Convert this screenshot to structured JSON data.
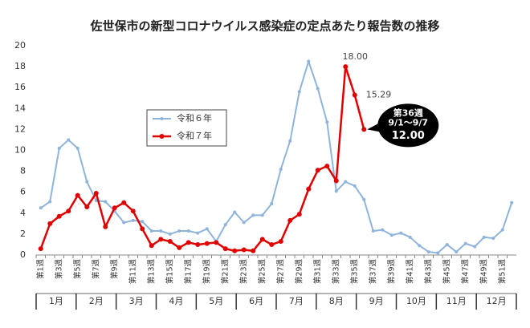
{
  "chart_data": {
    "type": "line",
    "title": "佐世保市の新型コロナウイルス感染症の定点あたり報告数の推移",
    "categories": [
      "第1週",
      null,
      "第3週",
      null,
      "第5週",
      null,
      "第7週",
      null,
      "第9週",
      null,
      "第11週",
      null,
      "第13週",
      null,
      "第15週",
      null,
      "第17週",
      null,
      "第19週",
      null,
      "第21週",
      null,
      "第23週",
      null,
      "第25週",
      null,
      "第27週",
      null,
      "第29週",
      null,
      "第31週",
      null,
      "第33週",
      null,
      "第35週",
      null,
      "第37週",
      null,
      "第39週",
      null,
      "第41週",
      null,
      "第43週",
      null,
      "第45週",
      null,
      "第47週",
      null,
      "第49週",
      null,
      "第51週",
      null
    ],
    "months": [
      "1月",
      "2月",
      "3月",
      "4月",
      "5月",
      "6月",
      "7月",
      "8月",
      "9月",
      "10月",
      "11月",
      "12月"
    ],
    "series": [
      {
        "name": "令和６年",
        "color": "#8fb4dc",
        "values": [
          4.5,
          5.1,
          10.2,
          11.0,
          10.2,
          7.0,
          5.2,
          5.1,
          4.2,
          3.1,
          3.3,
          3.2,
          2.3,
          2.3,
          2.0,
          2.3,
          2.3,
          2.1,
          2.5,
          1.3,
          2.9,
          4.1,
          3.1,
          3.8,
          3.8,
          4.9,
          8.2,
          10.9,
          15.6,
          18.5,
          15.9,
          12.7,
          6.1,
          7.0,
          6.6,
          5.3,
          2.3,
          2.4,
          1.9,
          2.1,
          1.7,
          0.9,
          0.3,
          0.2,
          1.0,
          0.3,
          1.1,
          0.8,
          1.7,
          1.6,
          2.4,
          5.0
        ]
      },
      {
        "name": "令和７年",
        "color": "#e00000",
        "values": [
          0.6,
          3.0,
          3.7,
          4.2,
          5.7,
          4.6,
          5.9,
          2.7,
          4.5,
          5.0,
          4.2,
          2.5,
          0.9,
          1.5,
          1.3,
          0.7,
          1.2,
          1.0,
          1.1,
          1.2,
          0.6,
          0.4,
          0.5,
          0.4,
          1.5,
          1.0,
          1.3,
          3.3,
          3.9,
          6.3,
          8.1,
          8.5,
          7.1,
          18.0,
          15.29,
          12.0,
          null,
          null,
          null,
          null,
          null,
          null,
          null,
          null,
          null,
          null,
          null,
          null,
          null,
          null,
          null,
          null
        ],
        "value_labels": [
          null,
          null,
          null,
          null,
          null,
          null,
          null,
          null,
          null,
          null,
          null,
          null,
          null,
          null,
          null,
          null,
          null,
          null,
          null,
          null,
          null,
          null,
          null,
          null,
          null,
          null,
          null,
          null,
          null,
          null,
          null,
          null,
          null,
          "18.00",
          "15.29",
          "12.00",
          null,
          null,
          null,
          null,
          null,
          null,
          null,
          null,
          null,
          null,
          null,
          null,
          null,
          null,
          null,
          null
        ]
      }
    ],
    "annotation": [
      "第36週",
      "9/1～9/7"
    ],
    "ylim": [
      0,
      20
    ],
    "yticks": [
      0,
      2,
      4,
      6,
      8,
      10,
      12,
      14,
      16,
      18,
      20
    ],
    "grid": false
  }
}
